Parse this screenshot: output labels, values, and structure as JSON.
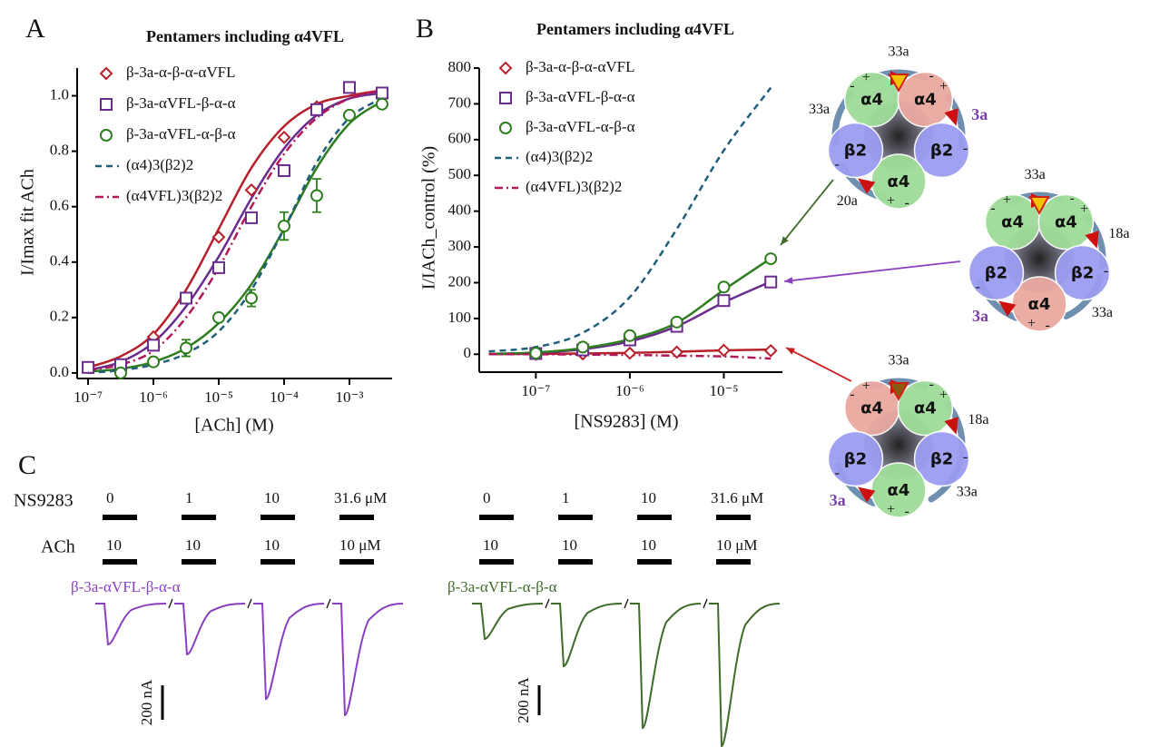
{
  "chart_data": [
    {
      "type": "line",
      "label": "A",
      "title": "Pentamers including α4VFL",
      "x_label": "[ACh] (M)",
      "y_label": "I/Imax fit ACh",
      "xscale": "log",
      "xlim": [
        6.8e-08,
        0.0045
      ],
      "xticks": [
        {
          "value": 1e-07,
          "label": "10⁻⁷"
        },
        {
          "value": 1e-06,
          "label": "10⁻⁶"
        },
        {
          "value": 1e-05,
          "label": "10⁻⁵"
        },
        {
          "value": 0.0001,
          "label": "10⁻⁴"
        },
        {
          "value": 0.001,
          "label": "10⁻³"
        }
      ],
      "ylim": [
        -0.02,
        1.1
      ],
      "yticks": [
        {
          "value": 0,
          "label": "0.0"
        },
        0.2,
        0.4,
        0.6,
        0.8,
        {
          "value": 1,
          "label": "1.0"
        }
      ],
      "x": [
        1e-07,
        3.16e-07,
        1e-06,
        3.16e-06,
        1e-05,
        3.16e-05,
        0.0001,
        0.000316,
        0.001,
        0.00316
      ],
      "series": [
        {
          "name": "β-3a-α-β-α-αVFL",
          "color": "#b5202a",
          "marker": "diamond",
          "values": [
            null,
            null,
            0.13,
            null,
            0.49,
            0.66,
            0.85,
            0.96,
            null,
            null
          ],
          "fit": [
            0.02,
            0.06,
            0.14,
            0.3,
            0.52,
            0.74,
            0.89,
            0.97,
            1.0,
            1.02
          ]
        },
        {
          "name": "β-3a-αVFL-β-α-α",
          "color": "#6a2c8e",
          "marker": "square",
          "values": [
            0.02,
            0.03,
            0.1,
            0.27,
            0.38,
            0.56,
            0.73,
            0.95,
            1.03,
            1.01
          ],
          "fit": [
            0.01,
            0.04,
            0.11,
            0.24,
            0.42,
            0.63,
            0.81,
            0.93,
            0.99,
            1.01
          ]
        },
        {
          "name": "β-3a-αVFL-α-β-α",
          "color": "#2e7d1e",
          "marker": "circle",
          "values": [
            null,
            0.0,
            0.04,
            0.09,
            0.2,
            0.27,
            0.53,
            0.64,
            0.93,
            0.97
          ],
          "errors": [
            null,
            null,
            null,
            0.03,
            null,
            0.03,
            0.05,
            0.06,
            null,
            null
          ],
          "fit": [
            0.005,
            0.015,
            0.04,
            0.09,
            0.18,
            0.32,
            0.52,
            0.74,
            0.9,
            0.98
          ]
        },
        {
          "name": "(α4)3(β2)2",
          "color": "#1f5f7a",
          "dash": "dashed",
          "fit": [
            0.0,
            0.01,
            0.03,
            0.07,
            0.15,
            0.3,
            0.52,
            0.76,
            0.92,
            0.99
          ]
        },
        {
          "name": "(α4VFL)3(β2)2",
          "color": "#b0185a",
          "dash": "dashdot",
          "fit": [
            0.01,
            0.03,
            0.08,
            0.2,
            0.38,
            0.6,
            0.79,
            0.92,
            0.99,
            1.02
          ]
        }
      ]
    },
    {
      "type": "line",
      "label": "B",
      "title": "Pentamers including α4VFL",
      "x_label": "[NS9283] (M)",
      "y_label": "I/IACh_control (%)",
      "xscale": "log",
      "xlim": [
        2.5e-08,
        4.2e-05
      ],
      "xticks": [
        {
          "value": 1e-07,
          "label": "10⁻⁷"
        },
        {
          "value": 1e-06,
          "label": "10⁻⁶"
        },
        {
          "value": 1e-05,
          "label": "10⁻⁵"
        }
      ],
      "ylim": [
        -50,
        800
      ],
      "yticks": [
        0,
        100,
        200,
        300,
        400,
        500,
        600,
        700,
        800
      ],
      "x": [
        3.16e-08,
        1e-07,
        3.16e-07,
        1e-06,
        3.16e-06,
        1e-05,
        3.16e-05
      ],
      "series": [
        {
          "name": "β-3a-α-β-α-αVFL",
          "color": "#b5202a",
          "marker": "diamond",
          "values": [
            null,
            0,
            1,
            3,
            6,
            11,
            10
          ],
          "fit": [
            0,
            1,
            2,
            4,
            7,
            11,
            13
          ]
        },
        {
          "name": "β-3a-αVFL-β-α-α",
          "color": "#6a2c8e",
          "marker": "square",
          "values": [
            null,
            2,
            12,
            40,
            78,
            150,
            202
          ],
          "fit": [
            1,
            4,
            14,
            36,
            78,
            145,
            203
          ]
        },
        {
          "name": "β-3a-αVFL-α-β-α",
          "color": "#2e7d1e",
          "marker": "circle",
          "values": [
            null,
            3,
            20,
            52,
            90,
            188,
            267
          ],
          "fit": [
            1,
            5,
            17,
            42,
            88,
            180,
            268
          ]
        },
        {
          "name": "(α4)3(β2)2",
          "color": "#1f5f7a",
          "dash": "dashed",
          "fit": [
            8,
            20,
            60,
            160,
            350,
            570,
            745
          ]
        },
        {
          "name": "(α4VFL)3(β2)2",
          "color": "#b0185a",
          "dash": "dashdot",
          "fit": [
            0,
            0,
            -1,
            -2,
            -4,
            -6,
            -12
          ]
        }
      ]
    }
  ],
  "panel_c": {
    "label": "C",
    "ns_label": "NS9283",
    "ach_label": "ACh",
    "groups": [
      {
        "name": "β-3a-αVFL-β-α-α",
        "color": "#8a3fc0",
        "ns": [
          "0",
          "1",
          "10",
          "31.6 μM"
        ],
        "ach": [
          "10",
          "10",
          "10",
          "10 μM"
        ],
        "peak_nA": [
          -237,
          -295,
          -553,
          -647
        ],
        "scale_nA": 200,
        "scale_label": "200 nA"
      },
      {
        "name": "β-3a-αVFL-α-β-α",
        "color": "#3f6b2a",
        "ns": [
          "0",
          "1",
          "10",
          "31.6 μM"
        ],
        "ach": [
          "10",
          "10",
          "10",
          "10 μM"
        ],
        "peak_nA": [
          -236,
          -418,
          -830,
          -951
        ],
        "scale_nA": 200,
        "scale_label": "200 nA"
      }
    ]
  },
  "diagrams": {
    "plus": "+",
    "minus": "-",
    "items": [
      {
        "subunits": [
          {
            "label": "α4",
            "color": "#9fdc98"
          },
          {
            "label": "α4",
            "color": "#e9a9a0"
          },
          {
            "label": "β2",
            "color": "#9b9cf0"
          },
          {
            "label": "α4",
            "color": "#9fdc98"
          },
          {
            "label": "β2",
            "color": "#9b9cf0"
          }
        ],
        "labels": [
          "33a",
          "3a",
          "33a",
          "20a"
        ]
      },
      {
        "subunits": [
          {
            "label": "α4",
            "color": "#9fdc98"
          },
          {
            "label": "α4",
            "color": "#9fdc98"
          },
          {
            "label": "β2",
            "color": "#9b9cf0"
          },
          {
            "label": "α4",
            "color": "#e9a9a0"
          },
          {
            "label": "β2",
            "color": "#9b9cf0"
          }
        ],
        "labels": [
          "33a",
          "18a",
          "33a",
          "3a"
        ]
      },
      {
        "subunits": [
          {
            "label": "α4",
            "color": "#e9a9a0"
          },
          {
            "label": "α4",
            "color": "#9fdc98"
          },
          {
            "label": "β2",
            "color": "#9b9cf0"
          },
          {
            "label": "α4",
            "color": "#9fdc98"
          },
          {
            "label": "β2",
            "color": "#9b9cf0"
          }
        ],
        "labels": [
          "33a",
          "18a",
          "33a",
          "3a"
        ]
      }
    ]
  }
}
